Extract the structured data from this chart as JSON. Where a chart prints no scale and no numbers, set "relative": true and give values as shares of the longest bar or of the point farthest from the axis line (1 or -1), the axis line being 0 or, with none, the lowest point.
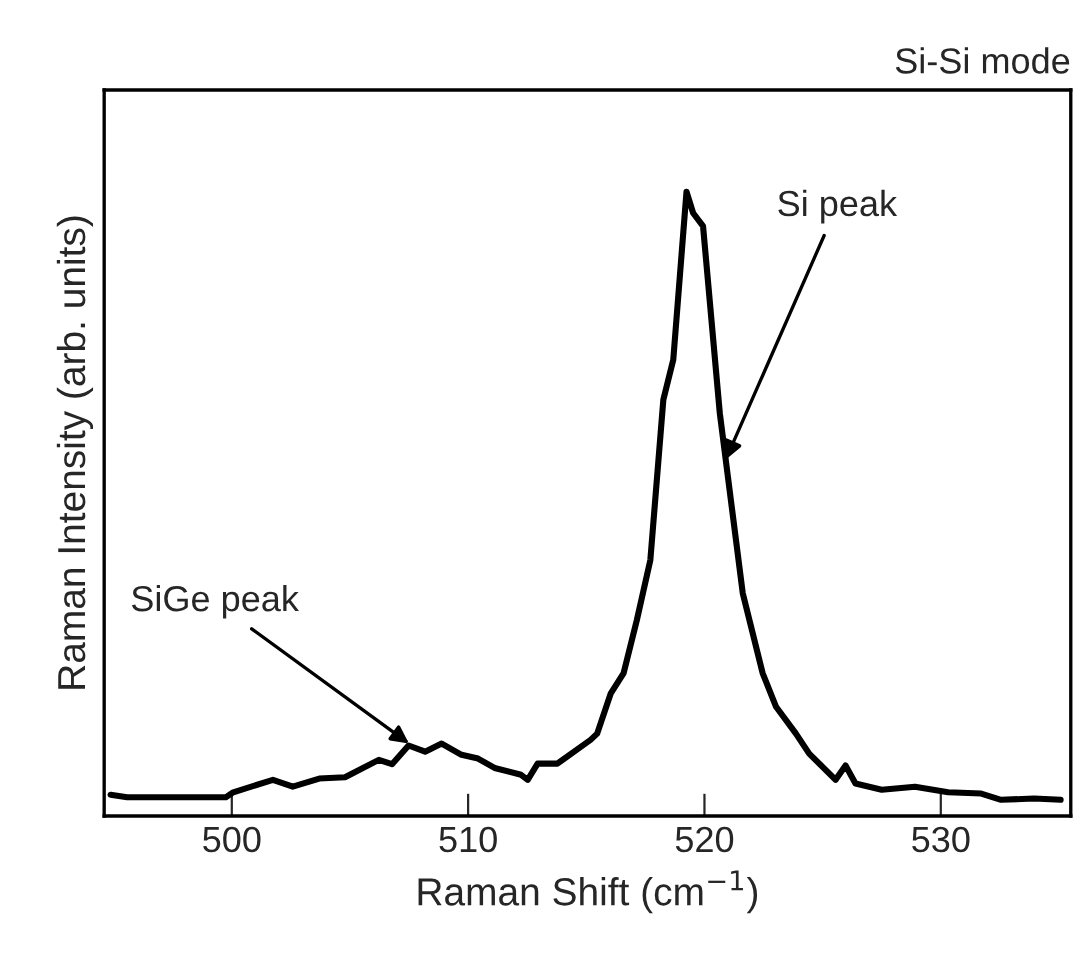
{
  "chart_data": {
    "type": "line",
    "title": "Si-Si mode",
    "xlabel": "Raman Shift (cm$^{−1}$)",
    "ylabel": "Raman Intensity (arb. units)",
    "relative": true,
    "xlim": [
      494.6,
      535.5
    ],
    "xticks": [
      500,
      510,
      520,
      530
    ],
    "grid": false,
    "legend": false,
    "marker": "none",
    "line_style": "solid",
    "x": [
      494.87,
      495.57,
      499.75,
      500.06,
      501.74,
      502.58,
      503.7,
      504.79,
      506.22,
      506.78,
      507.48,
      508.18,
      508.88,
      509.72,
      510.42,
      511.12,
      512.24,
      512.52,
      512.94,
      513.78,
      515.18,
      515.46,
      516.03,
      516.58,
      517.14,
      517.71,
      518.26,
      518.68,
      519.24,
      519.52,
      519.94,
      520.65,
      521.62,
      522.46,
      523.03,
      523.87,
      524.43,
      525.55,
      525.97,
      526.39,
      527.5,
      528.91,
      530.31,
      531.71,
      532.55,
      533.95,
      535.07
    ],
    "series": [
      {
        "color": "#000000",
        "values": [
          0.034,
          0.03,
          0.03,
          0.038,
          0.058,
          0.047,
          0.06,
          0.062,
          0.09,
          0.083,
          0.113,
          0.103,
          0.116,
          0.098,
          0.092,
          0.077,
          0.066,
          0.058,
          0.084,
          0.084,
          0.122,
          0.132,
          0.196,
          0.229,
          0.314,
          0.41,
          0.667,
          0.731,
          1.0,
          0.966,
          0.945,
          0.645,
          0.357,
          0.229,
          0.175,
          0.132,
          0.1,
          0.058,
          0.081,
          0.052,
          0.042,
          0.047,
          0.038,
          0.036,
          0.026,
          0.028,
          0.026
        ]
      }
    ],
    "annotations": [
      {
        "text": "Si peak",
        "x": 520.9,
        "y": 0.571
      },
      {
        "text": "SiGe peak",
        "x": 507.5,
        "y": 0.116
      }
    ]
  }
}
